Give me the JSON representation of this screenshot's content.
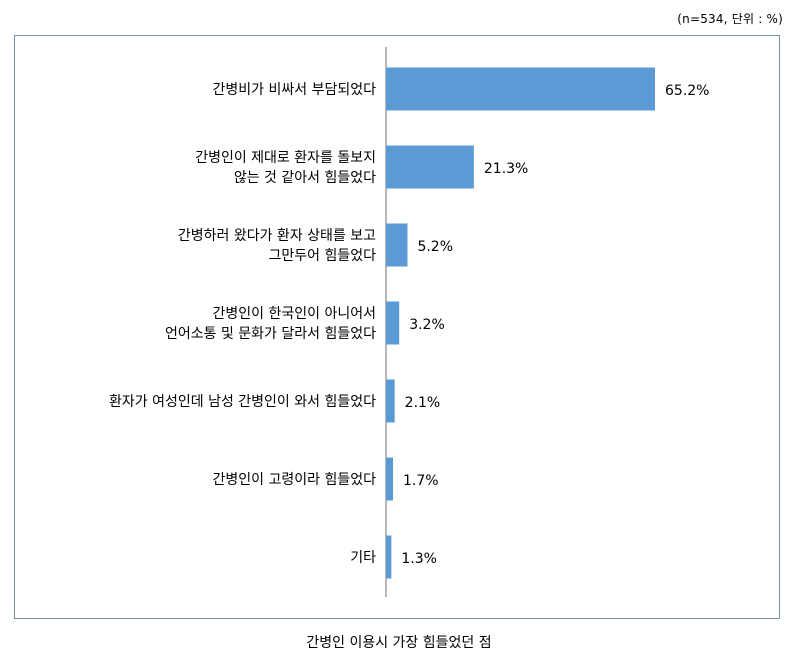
{
  "note": "(n=534, 단위 : %)",
  "caption": "간병인 이용시 가장 힘들었던 점",
  "chart_data": {
    "type": "bar",
    "orientation": "horizontal",
    "categories": [
      [
        "간병비가 비싸서 부담되었다"
      ],
      [
        "간병인이 제대로 환자를 돌보지",
        "않는 것 같아서 힘들었다"
      ],
      [
        "간병하러 왔다가 환자 상태를 보고",
        "그만두어  힘들었다"
      ],
      [
        "간병인이 한국인이 아니어서",
        "언어소통 및 문화가 달라서 힘들었다"
      ],
      [
        "환자가 여성인데 남성 간병인이 와서 힘들었다"
      ],
      [
        "간병인이 고령이라 힘들었다"
      ],
      [
        "기타"
      ]
    ],
    "values": [
      65.2,
      21.3,
      5.2,
      3.2,
      2.1,
      1.7,
      1.3
    ],
    "value_labels": [
      "65.2%",
      "21.3%",
      "5.2%",
      "3.2%",
      "2.1%",
      "1.7%",
      "1.3%"
    ],
    "xlim": [
      0,
      100
    ],
    "bar_color": "#5b9bd5",
    "grid": false
  }
}
